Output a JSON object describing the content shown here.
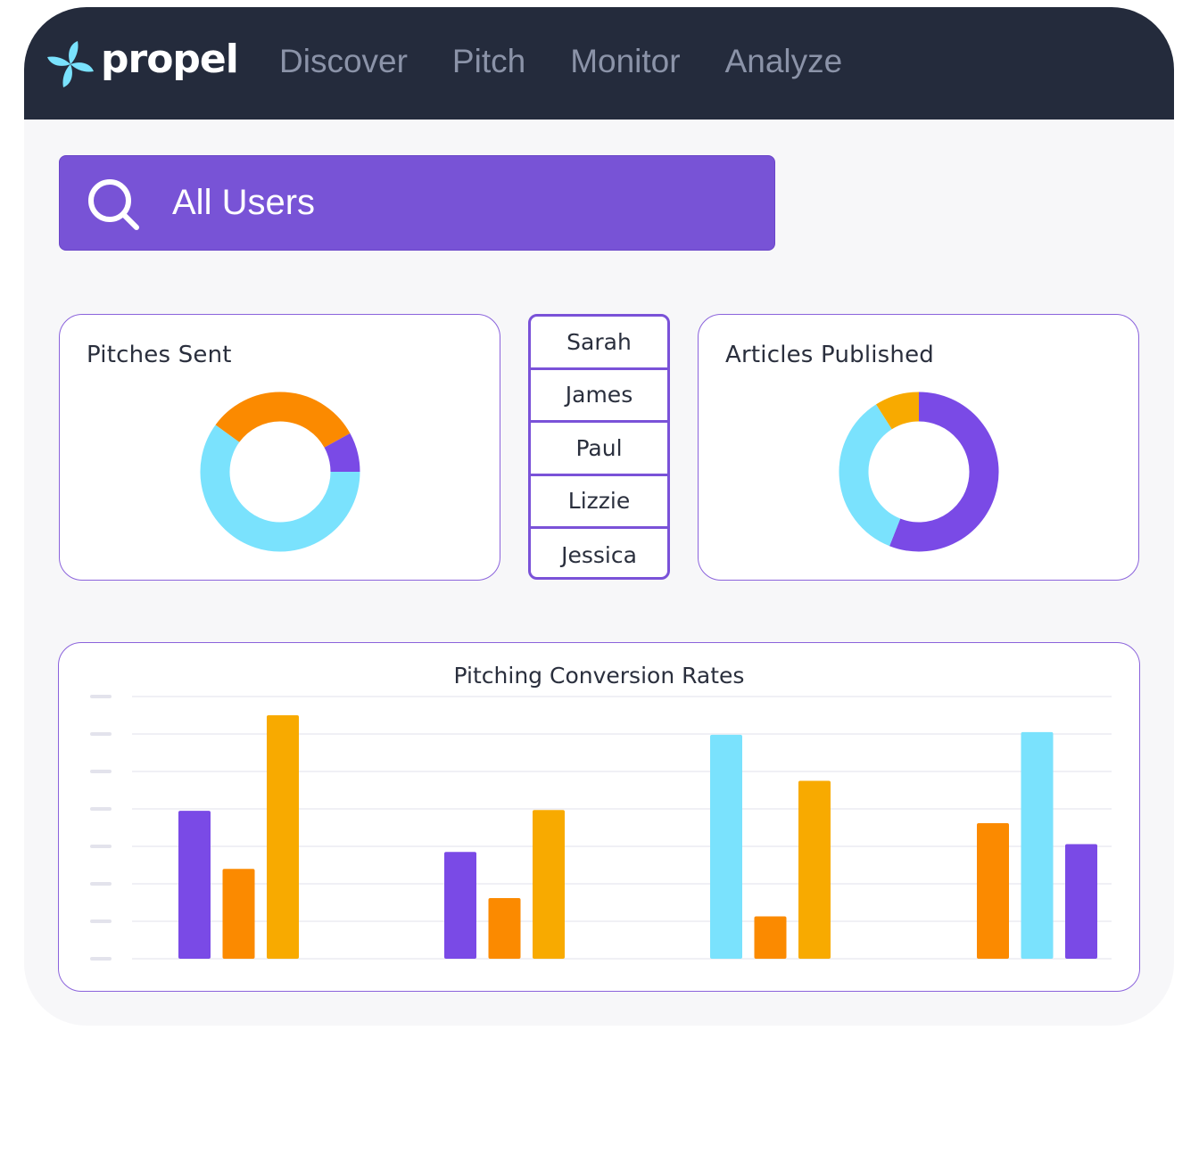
{
  "brand": {
    "name": "propel",
    "accent": "#7853d6",
    "topbar_color": "#242b3c"
  },
  "nav": {
    "items": [
      "Discover",
      "Pitch",
      "Monitor",
      "Analyze"
    ]
  },
  "search": {
    "label": "All Users",
    "icon": "search-icon"
  },
  "pitches_card": {
    "title": "Pitches Sent",
    "chart_data": {
      "type": "pie",
      "donut": true,
      "title": "Pitches Sent",
      "slices": [
        {
          "color": "#7ae2fd",
          "value": 60
        },
        {
          "color": "#fb8a00",
          "value": 32
        },
        {
          "color": "#7a4ae6",
          "value": 8
        }
      ]
    }
  },
  "users": {
    "items": [
      "Sarah",
      "James",
      "Paul",
      "Lizzie",
      "Jessica"
    ]
  },
  "articles_card": {
    "title": "Articles Published",
    "chart_data": {
      "type": "pie",
      "donut": true,
      "title": "Articles Published",
      "slices": [
        {
          "color": "#7a4ae6",
          "value": 56
        },
        {
          "color": "#7ae2fd",
          "value": 35
        },
        {
          "color": "#f8aa00",
          "value": 9
        }
      ]
    }
  },
  "conversion": {
    "title": "Pitching Conversion Rates",
    "chart_data": {
      "type": "bar",
      "title": "Pitching Conversion Rates",
      "ylim": [
        0,
        7
      ],
      "grid": true,
      "groups": [
        {
          "bars": [
            {
              "color": "#7a4ae6",
              "value": 3.95
            },
            {
              "color": "#fb8a00",
              "value": 2.4
            },
            {
              "color": "#f8aa00",
              "value": 6.5
            }
          ]
        },
        {
          "bars": [
            {
              "color": "#7a4ae6",
              "value": 2.85
            },
            {
              "color": "#fb8a00",
              "value": 1.62
            },
            {
              "color": "#f8aa00",
              "value": 3.97
            }
          ]
        },
        {
          "bars": [
            {
              "color": "#7ae2fd",
              "value": 5.98
            },
            {
              "color": "#fb8a00",
              "value": 1.13
            },
            {
              "color": "#f8aa00",
              "value": 4.75
            }
          ]
        },
        {
          "bars": [
            {
              "color": "#fb8a00",
              "value": 3.62
            },
            {
              "color": "#7ae2fd",
              "value": 6.05
            },
            {
              "color": "#7a4ae6",
              "value": 3.06
            }
          ]
        }
      ]
    }
  }
}
